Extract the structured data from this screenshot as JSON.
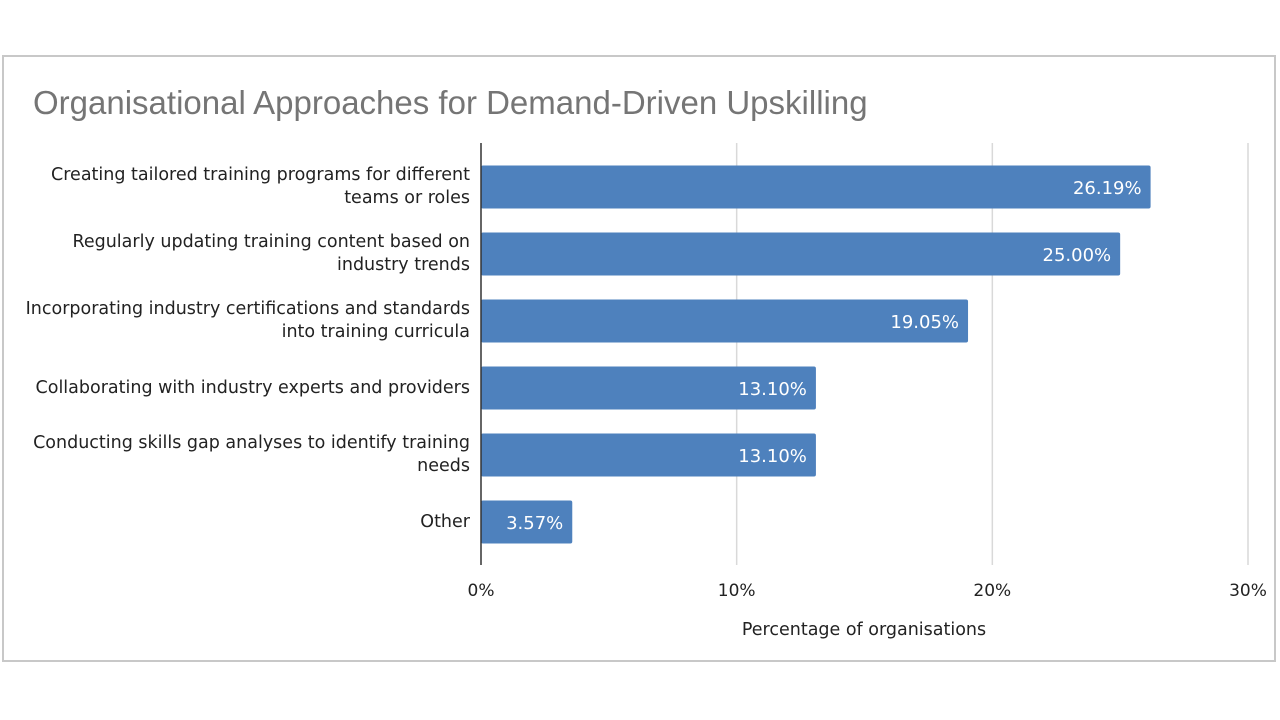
{
  "chart_data": {
    "type": "bar",
    "orientation": "horizontal",
    "title": "Organisational Approaches for Demand-Driven Upskilling",
    "xlabel": "Percentage of organisations",
    "ylabel": "",
    "categories": [
      "Creating tailored training programs for different teams or roles",
      "Regularly updating training content based on industry trends",
      "Incorporating industry certifications and standards into training curricula",
      "Collaborating with industry experts and providers",
      "Conducting skills gap analyses to identify training needs",
      "Other"
    ],
    "values": [
      26.19,
      25.0,
      19.05,
      13.1,
      13.1,
      3.57
    ],
    "data_labels": [
      "26.19%",
      "25.00%",
      "19.05%",
      "13.10%",
      "13.10%",
      "3.57%"
    ],
    "xlim": [
      0,
      30
    ],
    "x_ticks": [
      0,
      10,
      20,
      30
    ],
    "x_tick_labels": [
      "0%",
      "10%",
      "20%",
      "30%"
    ],
    "grid": true,
    "legend": "none",
    "bar_color": "#4e81bd",
    "gridline_color": "#d9d9d9"
  }
}
